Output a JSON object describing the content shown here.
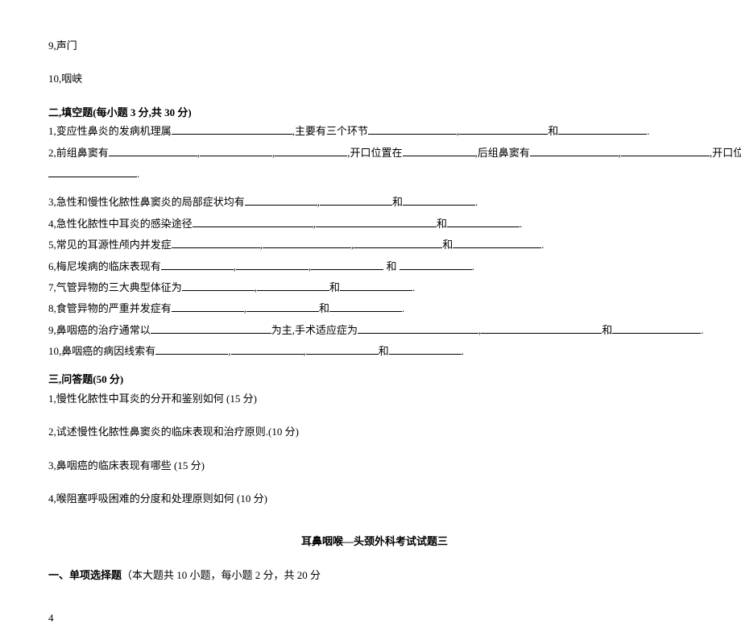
{
  "prior_section": {
    "item9": "9,声门",
    "item10": "10,咽峡"
  },
  "section2": {
    "header": "二,填空题(每小题 3 分,共 30 分)",
    "q1": {
      "pre": "1,变应性鼻炎的发病机理属",
      "mid1": ",主要有三个环节",
      "sep": ",",
      "and": "和",
      "end": "."
    },
    "q2": {
      "pre": "2,前组鼻窦有",
      "sep": ",",
      "mid1": ",开口位置在",
      "mid2": ",后组鼻窦有",
      "mid3": ",开口位置在",
      "end": "."
    },
    "q3": {
      "pre": "3,急性和慢性化脓性鼻窦炎的局部症状均有",
      "sep": ",",
      "and": "和",
      "end": "."
    },
    "q4": {
      "pre": "4,急性化脓性中耳炎的感染途径",
      "sep": ",",
      "and": "和",
      "end": "."
    },
    "q5": {
      "pre": "5,常见的耳源性颅内并发症",
      "sep": ",",
      "and": "和",
      "end": "."
    },
    "q6": {
      "pre": "6,梅尼埃病的临床表现有",
      "sep": ",",
      "and": " 和 ",
      "end": "."
    },
    "q7": {
      "pre": "7,气管异物的三大典型体征为",
      "sep": ",",
      "and": "和",
      "end": "."
    },
    "q8": {
      "pre": "8,食管异物的严重并发症有",
      "sep": ",",
      "and": "和",
      "end": "."
    },
    "q9": {
      "pre": "9,鼻咽癌的治疗通常以",
      "mid": "为主,手术适应症为",
      "sep": ",",
      "and": "和",
      "end": "."
    },
    "q10": {
      "pre": "10,鼻咽癌的病因线索有",
      "sep": ",",
      "and": "和",
      "end": "."
    }
  },
  "section3": {
    "header": "三,问答题(50 分)",
    "q1": "1,慢性化脓性中耳炎的分开和鉴别如何  (15 分)",
    "q2": "2,试述慢性化脓性鼻窦炎的临床表现和治疗原则.(10 分)",
    "q3": "3,鼻咽癌的临床表现有哪些  (15 分)",
    "q4": "4,喉阻塞呼吸困难的分度和处理原则如何  (10 分)"
  },
  "next_exam": {
    "title": "耳鼻咽喉—头颈外科考试试题三",
    "section1": {
      "label": "一、单项选择题",
      "desc": "（本大题共 10 小题，每小题 2 分，共 20 分"
    }
  },
  "page_number": "4"
}
